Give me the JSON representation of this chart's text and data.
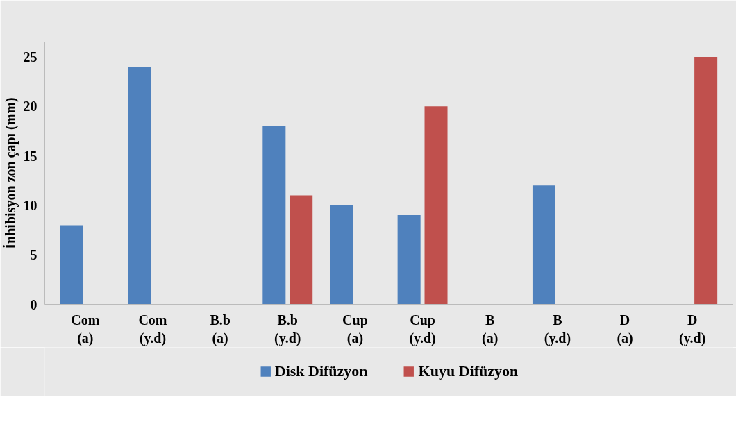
{
  "chart_data": {
    "type": "bar",
    "ylabel": "İnhibisyon zon çapı (mm)",
    "categories": [
      "Com (a)",
      "Com (y.d)",
      "B.b (a)",
      "B.b (y.d)",
      "Cup (a)",
      "Cup (y.d)",
      "B (a)",
      "B (y.d)",
      "D (a)",
      "D (y.d)"
    ],
    "series": [
      {
        "name": "Disk Difüzyon",
        "color": "#4f81bd",
        "values": [
          8,
          24,
          0,
          18,
          10,
          9,
          0,
          12,
          0,
          0
        ]
      },
      {
        "name": "Kuyu Difüzyon",
        "color": "#c0504d",
        "values": [
          0,
          0,
          0,
          11,
          0,
          20,
          0,
          0,
          0,
          25
        ]
      }
    ],
    "ylim": [
      0,
      25
    ],
    "yticks": [
      0,
      5,
      10,
      15,
      20,
      25
    ],
    "grid": false,
    "legend": "bottom"
  }
}
